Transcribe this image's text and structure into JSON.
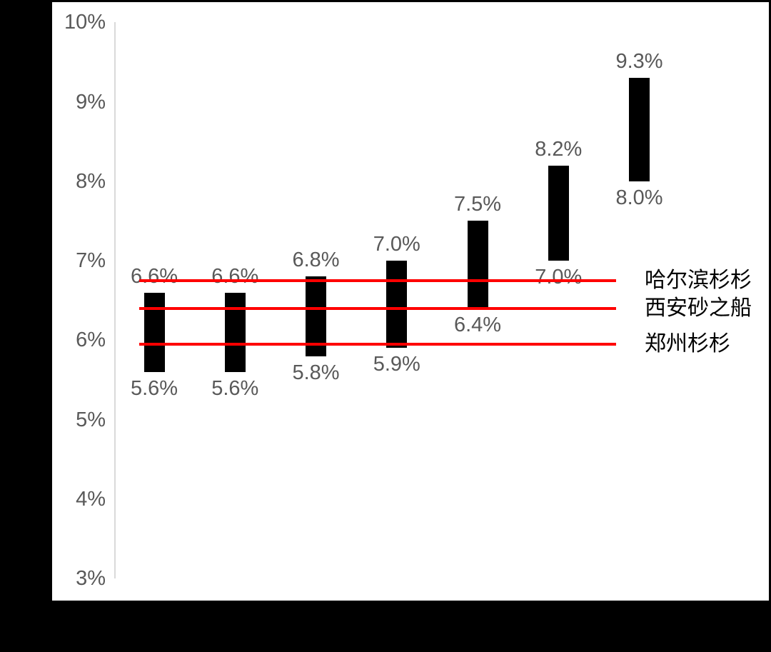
{
  "chart_data": {
    "type": "bar",
    "subtype": "floating_range_columns",
    "title": "",
    "xlabel": "",
    "ylabel": "",
    "grid": false,
    "legend_position": "right",
    "colors": {
      "bar": "#000000",
      "data_label": "#595959",
      "axis_line": "#d9d9d9",
      "reference_line": "#ff0000",
      "legend_text": "#000000",
      "plot_background": "#ffffff",
      "frame_background": "#000000"
    },
    "y_axis": {
      "min": 3,
      "max": 10,
      "tick_format": "percent",
      "ticks": [
        {
          "value": 10,
          "label": "10%"
        },
        {
          "value": 9,
          "label": "9%"
        },
        {
          "value": 8,
          "label": "8%"
        },
        {
          "value": 7,
          "label": "7%"
        },
        {
          "value": 6,
          "label": "6%"
        },
        {
          "value": 5,
          "label": "5%"
        },
        {
          "value": 4,
          "label": "4%"
        },
        {
          "value": 3,
          "label": "3%"
        }
      ]
    },
    "bars": [
      {
        "low": 5.6,
        "high": 6.6,
        "low_label": "5.6%",
        "high_label": "6.6%"
      },
      {
        "low": 5.6,
        "high": 6.6,
        "low_label": "5.6%",
        "high_label": "6.6%"
      },
      {
        "low": 5.8,
        "high": 6.8,
        "low_label": "5.8%",
        "high_label": "6.8%"
      },
      {
        "low": 5.9,
        "high": 7.0,
        "low_label": "5.9%",
        "high_label": "7.0%"
      },
      {
        "low": 6.4,
        "high": 7.5,
        "low_label": "6.4%",
        "high_label": "7.5%"
      },
      {
        "low": 7.0,
        "high": 8.2,
        "low_label": "7.0%",
        "high_label": "8.2%"
      },
      {
        "low": 8.0,
        "high": 9.3,
        "low_label": "8.0%",
        "high_label": "9.3%"
      }
    ],
    "reference_lines": [
      {
        "label": "哈尔滨杉杉",
        "value": 6.75
      },
      {
        "label": "西安砂之船",
        "value": 6.4
      },
      {
        "label": "郑州杉杉",
        "value": 5.95
      }
    ]
  }
}
